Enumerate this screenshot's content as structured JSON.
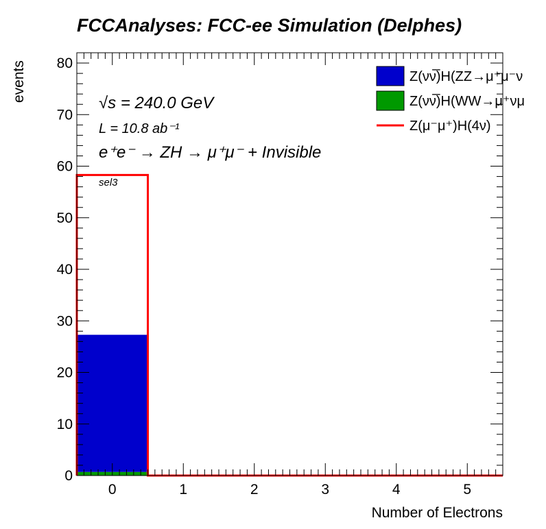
{
  "chart_data": {
    "type": "bar",
    "title": "FCCAnalyses: FCC-ee Simulation (Delphes)",
    "xlabel": "Number of Electrons",
    "ylabel": "events",
    "xlim": [
      -0.5,
      5.5
    ],
    "ylim": [
      0,
      82
    ],
    "x_ticks": [
      "0",
      "1",
      "2",
      "3",
      "4",
      "5"
    ],
    "y_ticks": [
      "0",
      "10",
      "20",
      "30",
      "40",
      "50",
      "60",
      "70",
      "80"
    ],
    "bins": [
      0,
      1,
      2,
      3,
      4,
      5
    ],
    "stacked_series": [
      {
        "name": "Z(ν̅ν)H(WW→μ⁺νμ⁻ν̅)",
        "legend_label": "Z(νν̅)H(WW→μ⁺νμ",
        "color": "#009900",
        "values": [
          0.7,
          0,
          0,
          0,
          0,
          0
        ]
      },
      {
        "name": "Z(νν̅)H(ZZ→μ⁺μ⁻νν̅)",
        "legend_label": "Z(νν̅)H(ZZ→μ⁺μ⁻ν",
        "color": "#0000cc",
        "values": [
          26.6,
          0,
          0,
          0,
          0,
          0
        ]
      }
    ],
    "line_series": [
      {
        "name": "Z(μ⁻μ⁺)H(4ν)",
        "legend_label": "Z(μ⁻μ⁺)H(4ν)",
        "color": "#ff0000",
        "values": [
          58.3,
          0,
          0,
          0,
          0,
          0
        ]
      }
    ],
    "legend_order": [
      "Z(νν̅)H(ZZ→μ⁺μ⁻νν̅)",
      "Z(ν̅ν)H(WW→μ⁺νμ⁻ν̅)",
      "Z(μ⁻μ⁺)H(4ν)"
    ],
    "legend_position": "top-right",
    "annotations": {
      "sqrt_s": "√s = 240.0 GeV",
      "lumi": "L = 10.8 ab⁻¹",
      "process": "e⁺e⁻ → ZH → μ⁺μ⁻ + Invisible",
      "selection": "sel3"
    },
    "grid": false
  }
}
